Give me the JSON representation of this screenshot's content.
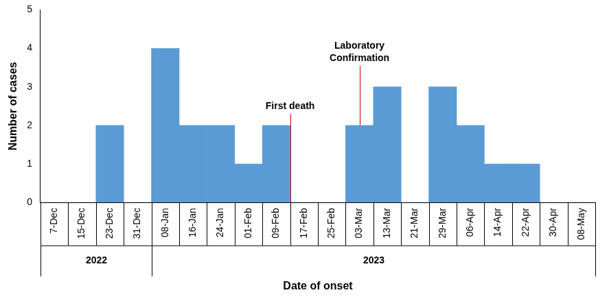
{
  "chart_data": {
    "type": "bar",
    "categories": [
      "7-Dec",
      "15-Dec",
      "23-Dec",
      "31-Dec",
      "08-Jan",
      "16-Jan",
      "24-Jan",
      "01-Feb",
      "09-Feb",
      "17-Feb",
      "25-Feb",
      "03-Mar",
      "13-Mar",
      "21-Mar",
      "29-Mar",
      "06-Apr",
      "14-Apr",
      "22-Apr",
      "30-Apr",
      "08-May"
    ],
    "values": [
      0,
      0,
      2,
      0,
      4,
      2,
      2,
      1,
      2,
      0,
      0,
      2,
      3,
      0,
      3,
      2,
      1,
      1,
      0,
      0
    ],
    "color": "#5b9bd5",
    "ylim": [
      0,
      5
    ],
    "yticks": [
      0,
      1,
      2,
      3,
      4,
      5
    ],
    "grid": false,
    "x_label": "Date of onset",
    "y_label": "Number of cases",
    "year_groups": [
      {
        "label": "2022",
        "count": 4
      },
      {
        "label": "2023",
        "count": 16
      }
    ],
    "annotations": [
      {
        "text": [
          "First death"
        ],
        "x": 8.5,
        "y": 2.3
      },
      {
        "text": [
          "Laboratory",
          "Confirmation"
        ],
        "x": 11,
        "y": 3.55
      }
    ]
  }
}
